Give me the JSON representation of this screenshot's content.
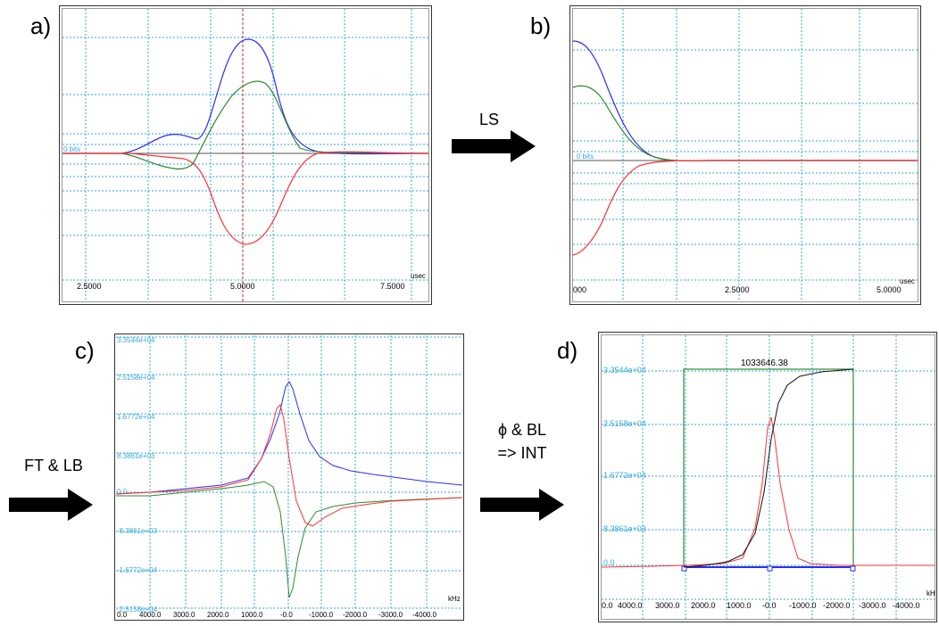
{
  "panels": {
    "a": {
      "label": "a)",
      "baseline_text": "0 bits",
      "x_unit": "usec",
      "x_ticks": [
        "2.5000",
        "5.0000",
        "7.5000"
      ]
    },
    "b": {
      "label": "b)",
      "baseline_text": "0 bits",
      "x_unit": "usec",
      "x_ticks": [
        "000",
        "2.5000",
        "5.0000"
      ]
    },
    "c": {
      "label": "c)",
      "x_unit": "kHz",
      "y_ticks": [
        "3.3544e+04",
        "2.5158e+04",
        "1.6772e+04",
        "8.3861e+03",
        "0.0",
        "-8.3861e+03",
        "-1.6772e+04",
        "-2.5158e+04"
      ],
      "x_ticks": [
        "0.0",
        "4000.0",
        "3000.0",
        "2000.0",
        "1000.0",
        "-0.0",
        "-1000.0",
        "-2000.0",
        "-3000.0",
        "-4000.0"
      ]
    },
    "d": {
      "label": "d)",
      "x_unit": "kH",
      "integral_value": "1033646.38",
      "y_ticks": [
        "3.3544e+04",
        "2.5158e+04",
        "1.6772e+04",
        "8.3861e+03",
        "0.0"
      ],
      "x_ticks": [
        "0.0",
        "4000.0",
        "3000.0",
        "2000.0",
        "1000.0",
        "-0.0",
        "-1000.0",
        "-2000.0",
        "-3000.0",
        "-4000.0"
      ]
    }
  },
  "steps": {
    "ls": "LS",
    "ft_lb": "FT & LB",
    "phase_bl_line1": "ϕ & BL",
    "phase_bl_line2": "=> INT"
  },
  "colors": {
    "grid": "#33aadd",
    "blue_trace": "#2b2bff",
    "green_trace": "#2e8b2e",
    "red_trace": "#ff3333",
    "black_trace": "#111111",
    "tick_text": "#33aadd"
  }
}
